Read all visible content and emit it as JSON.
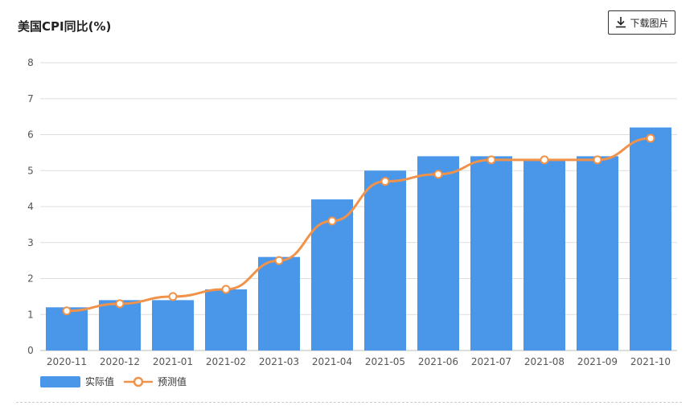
{
  "header": {
    "title": "美国CPI同比(%)",
    "download_label": "下载图片",
    "download_icon": "download-icon"
  },
  "colors": {
    "bar": "#4a97ea",
    "line": "#f0924a",
    "grid": "#dddddd"
  },
  "chart_data": {
    "type": "bar",
    "title": "美国CPI同比(%)",
    "categories": [
      "2020-11",
      "2020-12",
      "2021-01",
      "2021-02",
      "2021-03",
      "2021-04",
      "2021-05",
      "2021-06",
      "2021-07",
      "2021-08",
      "2021-09",
      "2021-10"
    ],
    "series": [
      {
        "name": "实际值",
        "type": "bar",
        "values": [
          1.2,
          1.4,
          1.4,
          1.7,
          2.6,
          4.2,
          5.0,
          5.4,
          5.4,
          5.3,
          5.4,
          6.2
        ]
      },
      {
        "name": "预测值",
        "type": "line",
        "values": [
          1.1,
          1.3,
          1.5,
          1.7,
          2.5,
          3.6,
          4.7,
          4.9,
          5.3,
          5.3,
          5.3,
          5.9
        ]
      }
    ],
    "ylim": [
      0,
      8
    ],
    "yticks": [
      0,
      1,
      2,
      3,
      4,
      5,
      6,
      7,
      8
    ],
    "grid": true,
    "legend_position": "bottom-left"
  }
}
